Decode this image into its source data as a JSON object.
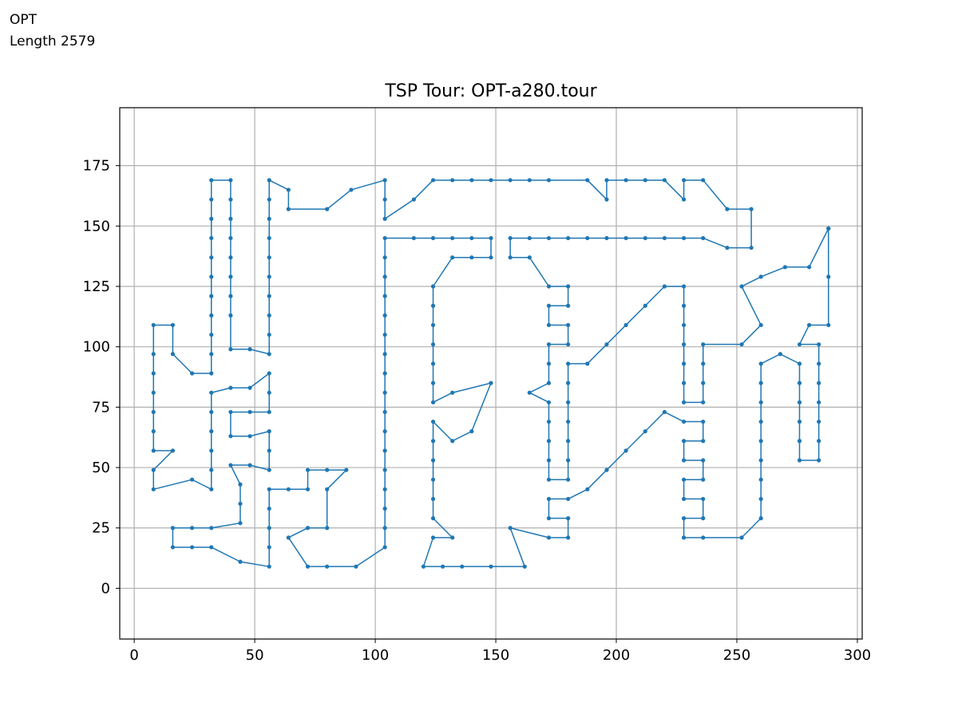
{
  "header": {
    "name": "OPT",
    "length_text": "Length 2579"
  },
  "colors": {
    "tour": "#1f77b4",
    "grid": "#b0b0b0",
    "axis": "#000000"
  },
  "chart_data": {
    "type": "line",
    "title": "TSP Tour: OPT-a280.tour",
    "xlabel": "",
    "ylabel": "",
    "xlim": [
      -6,
      302
    ],
    "ylim": [
      -21,
      199
    ],
    "xticks": [
      0,
      50,
      100,
      150,
      200,
      250,
      300
    ],
    "yticks": [
      0,
      25,
      50,
      75,
      100,
      125,
      150,
      175
    ],
    "grid": true,
    "marker": "circle",
    "series": [
      {
        "values": [
          [
            288,
            149
          ],
          [
            288,
            129
          ],
          [
            288,
            109
          ],
          [
            280,
            109
          ],
          [
            276,
            101
          ],
          [
            284,
            101
          ],
          [
            284,
            93
          ],
          [
            284,
            85
          ],
          [
            284,
            77
          ],
          [
            284,
            69
          ],
          [
            284,
            61
          ],
          [
            284,
            53
          ],
          [
            276,
            53
          ],
          [
            276,
            61
          ],
          [
            276,
            69
          ],
          [
            276,
            77
          ],
          [
            276,
            85
          ],
          [
            276,
            93
          ],
          [
            268,
            97
          ],
          [
            260,
            93
          ],
          [
            260,
            85
          ],
          [
            260,
            77
          ],
          [
            260,
            69
          ],
          [
            260,
            61
          ],
          [
            260,
            53
          ],
          [
            260,
            45
          ],
          [
            260,
            37
          ],
          [
            260,
            29
          ],
          [
            252,
            21
          ],
          [
            236,
            21
          ],
          [
            228,
            21
          ],
          [
            228,
            29
          ],
          [
            236,
            29
          ],
          [
            236,
            37
          ],
          [
            228,
            37
          ],
          [
            228,
            45
          ],
          [
            236,
            45
          ],
          [
            236,
            53
          ],
          [
            228,
            53
          ],
          [
            228,
            61
          ],
          [
            236,
            61
          ],
          [
            236,
            69
          ],
          [
            228,
            69
          ],
          [
            220,
            73
          ],
          [
            212,
            65
          ],
          [
            204,
            57
          ],
          [
            196,
            49
          ],
          [
            188,
            41
          ],
          [
            180,
            37
          ],
          [
            172,
            37
          ],
          [
            172,
            29
          ],
          [
            180,
            29
          ],
          [
            180,
            21
          ],
          [
            172,
            21
          ],
          [
            156,
            25
          ],
          [
            162,
            9
          ],
          [
            148,
            9
          ],
          [
            136,
            9
          ],
          [
            128,
            9
          ],
          [
            120,
            9
          ],
          [
            124,
            21
          ],
          [
            132,
            21
          ],
          [
            124,
            29
          ],
          [
            124,
            37
          ],
          [
            124,
            45
          ],
          [
            124,
            53
          ],
          [
            124,
            61
          ],
          [
            124,
            69
          ],
          [
            132,
            61
          ],
          [
            140,
            65
          ],
          [
            148,
            85
          ],
          [
            132,
            81
          ],
          [
            124,
            77
          ],
          [
            124,
            85
          ],
          [
            124,
            93
          ],
          [
            124,
            101
          ],
          [
            124,
            109
          ],
          [
            124,
            117
          ],
          [
            124,
            125
          ],
          [
            132,
            137
          ],
          [
            140,
            137
          ],
          [
            148,
            137
          ],
          [
            148,
            145
          ],
          [
            140,
            145
          ],
          [
            132,
            145
          ],
          [
            124,
            145
          ],
          [
            116,
            145
          ],
          [
            104,
            145
          ],
          [
            104,
            137
          ],
          [
            104,
            129
          ],
          [
            104,
            121
          ],
          [
            104,
            113
          ],
          [
            104,
            105
          ],
          [
            104,
            97
          ],
          [
            104,
            89
          ],
          [
            104,
            81
          ],
          [
            104,
            73
          ],
          [
            104,
            65
          ],
          [
            104,
            57
          ],
          [
            104,
            49
          ],
          [
            104,
            41
          ],
          [
            104,
            33
          ],
          [
            104,
            25
          ],
          [
            104,
            17
          ],
          [
            92,
            9
          ],
          [
            80,
            9
          ],
          [
            72,
            9
          ],
          [
            64,
            21
          ],
          [
            72,
            25
          ],
          [
            80,
            25
          ],
          [
            80,
            41
          ],
          [
            88,
            49
          ],
          [
            80,
            49
          ],
          [
            72,
            49
          ],
          [
            72,
            41
          ],
          [
            64,
            41
          ],
          [
            56,
            41
          ],
          [
            56,
            33
          ],
          [
            56,
            25
          ],
          [
            56,
            17
          ],
          [
            56,
            9
          ],
          [
            44,
            11
          ],
          [
            32,
            17
          ],
          [
            24,
            17
          ],
          [
            16,
            17
          ],
          [
            16,
            25
          ],
          [
            24,
            25
          ],
          [
            32,
            25
          ],
          [
            44,
            27
          ],
          [
            44,
            35
          ],
          [
            44,
            43
          ],
          [
            40,
            51
          ],
          [
            48,
            51
          ],
          [
            56,
            49
          ],
          [
            56,
            57
          ],
          [
            56,
            65
          ],
          [
            48,
            63
          ],
          [
            40,
            63
          ],
          [
            40,
            73
          ],
          [
            48,
            73
          ],
          [
            56,
            73
          ],
          [
            56,
            81
          ],
          [
            56,
            89
          ],
          [
            48,
            83
          ],
          [
            40,
            83
          ],
          [
            32,
            81
          ],
          [
            32,
            73
          ],
          [
            32,
            65
          ],
          [
            32,
            57
          ],
          [
            32,
            49
          ],
          [
            32,
            41
          ],
          [
            24,
            45
          ],
          [
            8,
            41
          ],
          [
            8,
            49
          ],
          [
            16,
            57
          ],
          [
            8,
            57
          ],
          [
            8,
            65
          ],
          [
            8,
            73
          ],
          [
            8,
            81
          ],
          [
            8,
            89
          ],
          [
            8,
            97
          ],
          [
            8,
            109
          ],
          [
            16,
            109
          ],
          [
            16,
            97
          ],
          [
            24,
            89
          ],
          [
            32,
            89
          ],
          [
            32,
            97
          ],
          [
            32,
            105
          ],
          [
            32,
            113
          ],
          [
            32,
            121
          ],
          [
            32,
            129
          ],
          [
            32,
            137
          ],
          [
            32,
            145
          ],
          [
            32,
            153
          ],
          [
            32,
            161
          ],
          [
            32,
            169
          ],
          [
            40,
            169
          ],
          [
            40,
            161
          ],
          [
            40,
            153
          ],
          [
            40,
            145
          ],
          [
            40,
            137
          ],
          [
            40,
            129
          ],
          [
            40,
            121
          ],
          [
            40,
            113
          ],
          [
            40,
            99
          ],
          [
            48,
            99
          ],
          [
            56,
            97
          ],
          [
            56,
            105
          ],
          [
            56,
            113
          ],
          [
            56,
            121
          ],
          [
            56,
            129
          ],
          [
            56,
            137
          ],
          [
            56,
            145
          ],
          [
            56,
            153
          ],
          [
            56,
            161
          ],
          [
            56,
            169
          ],
          [
            64,
            165
          ],
          [
            64,
            157
          ],
          [
            80,
            157
          ],
          [
            90,
            165
          ],
          [
            104,
            169
          ],
          [
            104,
            161
          ],
          [
            104,
            153
          ],
          [
            116,
            161
          ],
          [
            124,
            169
          ],
          [
            132,
            169
          ],
          [
            140,
            169
          ],
          [
            148,
            169
          ],
          [
            156,
            169
          ],
          [
            164,
            169
          ],
          [
            172,
            169
          ],
          [
            188,
            169
          ],
          [
            196,
            161
          ],
          [
            196,
            169
          ],
          [
            204,
            169
          ],
          [
            212,
            169
          ],
          [
            220,
            169
          ],
          [
            228,
            161
          ],
          [
            228,
            169
          ],
          [
            236,
            169
          ],
          [
            246,
            157
          ],
          [
            256,
            157
          ],
          [
            256,
            141
          ],
          [
            246,
            141
          ],
          [
            236,
            145
          ],
          [
            228,
            145
          ],
          [
            220,
            145
          ],
          [
            212,
            145
          ],
          [
            204,
            145
          ],
          [
            196,
            145
          ],
          [
            188,
            145
          ],
          [
            180,
            145
          ],
          [
            172,
            145
          ],
          [
            164,
            145
          ],
          [
            156,
            145
          ],
          [
            156,
            137
          ],
          [
            164,
            137
          ],
          [
            172,
            125
          ],
          [
            180,
            125
          ],
          [
            180,
            117
          ],
          [
            172,
            117
          ],
          [
            172,
            109
          ],
          [
            180,
            109
          ],
          [
            180,
            101
          ],
          [
            172,
            101
          ],
          [
            172,
            93
          ],
          [
            172,
            85
          ],
          [
            164,
            81
          ],
          [
            172,
            77
          ],
          [
            172,
            69
          ],
          [
            172,
            61
          ],
          [
            172,
            53
          ],
          [
            172,
            45
          ],
          [
            180,
            45
          ],
          [
            180,
            53
          ],
          [
            180,
            61
          ],
          [
            180,
            69
          ],
          [
            180,
            77
          ],
          [
            180,
            85
          ],
          [
            180,
            93
          ],
          [
            188,
            93
          ],
          [
            196,
            101
          ],
          [
            204,
            109
          ],
          [
            212,
            117
          ],
          [
            220,
            125
          ],
          [
            228,
            125
          ],
          [
            228,
            117
          ],
          [
            228,
            109
          ],
          [
            228,
            101
          ],
          [
            228,
            93
          ],
          [
            228,
            85
          ],
          [
            228,
            77
          ],
          [
            236,
            77
          ],
          [
            236,
            85
          ],
          [
            236,
            93
          ],
          [
            236,
            101
          ],
          [
            252,
            101
          ],
          [
            260,
            109
          ],
          [
            252,
            125
          ],
          [
            260,
            129
          ],
          [
            270,
            133
          ],
          [
            280,
            133
          ],
          [
            288,
            149
          ]
        ]
      }
    ]
  }
}
